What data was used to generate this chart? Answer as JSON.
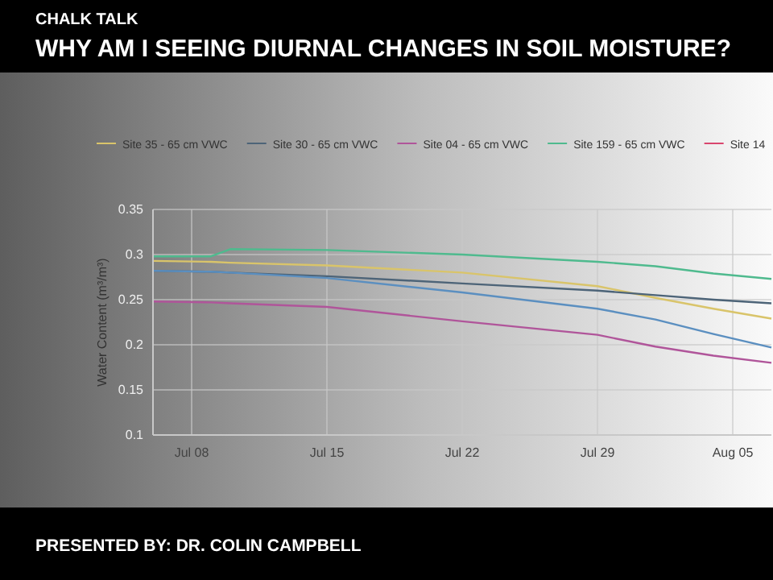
{
  "chart_data": {
    "type": "line",
    "title": "WHY AM I SEEING DIURNAL CHANGES IN SOIL MOISTURE?",
    "subtitle": "CHALK TALK",
    "annotations": [
      "PRESENTED BY: DR. COLIN CAMPBELL"
    ],
    "ylabel": "Water Content (m³/m³)",
    "x": [
      "--07-06",
      "--07-09",
      "--07-10",
      "--07-15",
      "--07-22",
      "--07-29",
      "--08-01",
      "--08-04",
      "--08-07"
    ],
    "xlim": [
      "--07-06",
      "--08-07"
    ],
    "xticks": [
      {
        "value": "--07-08",
        "label": "Jul 08"
      },
      {
        "value": "--07-15",
        "label": "Jul 15"
      },
      {
        "value": "--07-22",
        "label": "Jul 22"
      },
      {
        "value": "--07-29",
        "label": "Jul 29"
      },
      {
        "value": "--08-05",
        "label": "Aug 05"
      }
    ],
    "ylim": [
      0.1,
      0.35
    ],
    "yticks": [
      0.1,
      0.15,
      0.2,
      0.25,
      0.3,
      0.35
    ],
    "grid": true,
    "legend": "top",
    "series": [
      {
        "name": "Site 35 - 65 cm VWC",
        "color": "#d9c46a",
        "values": [
          0.293,
          0.292,
          0.291,
          0.288,
          0.28,
          0.265,
          0.252,
          0.24,
          0.229
        ]
      },
      {
        "name": "Site 30 - 65 cm VWC",
        "color": "#4d6478",
        "values": [
          0.282,
          0.281,
          0.28,
          0.276,
          0.268,
          0.26,
          0.255,
          0.25,
          0.246
        ]
      },
      {
        "name": "Site 04 - 65 cm VWC",
        "color": "#b0559a",
        "values": [
          0.248,
          0.247,
          0.246,
          0.242,
          0.226,
          0.211,
          0.198,
          0.188,
          0.18
        ]
      },
      {
        "name": "Site 159 - 65 cm VWC",
        "color": "#4fba8e",
        "values": [
          0.298,
          0.298,
          0.306,
          0.305,
          0.3,
          0.292,
          0.287,
          0.279,
          0.273
        ]
      },
      {
        "name": "Site 14",
        "color": "#d9466e",
        "values": [
          null,
          null,
          null,
          null,
          null,
          null,
          null,
          null,
          null
        ]
      },
      {
        "color": "#5b8fc0",
        "values": [
          0.282,
          0.281,
          0.28,
          0.274,
          0.258,
          0.24,
          0.228,
          0.212,
          0.197
        ]
      }
    ]
  }
}
